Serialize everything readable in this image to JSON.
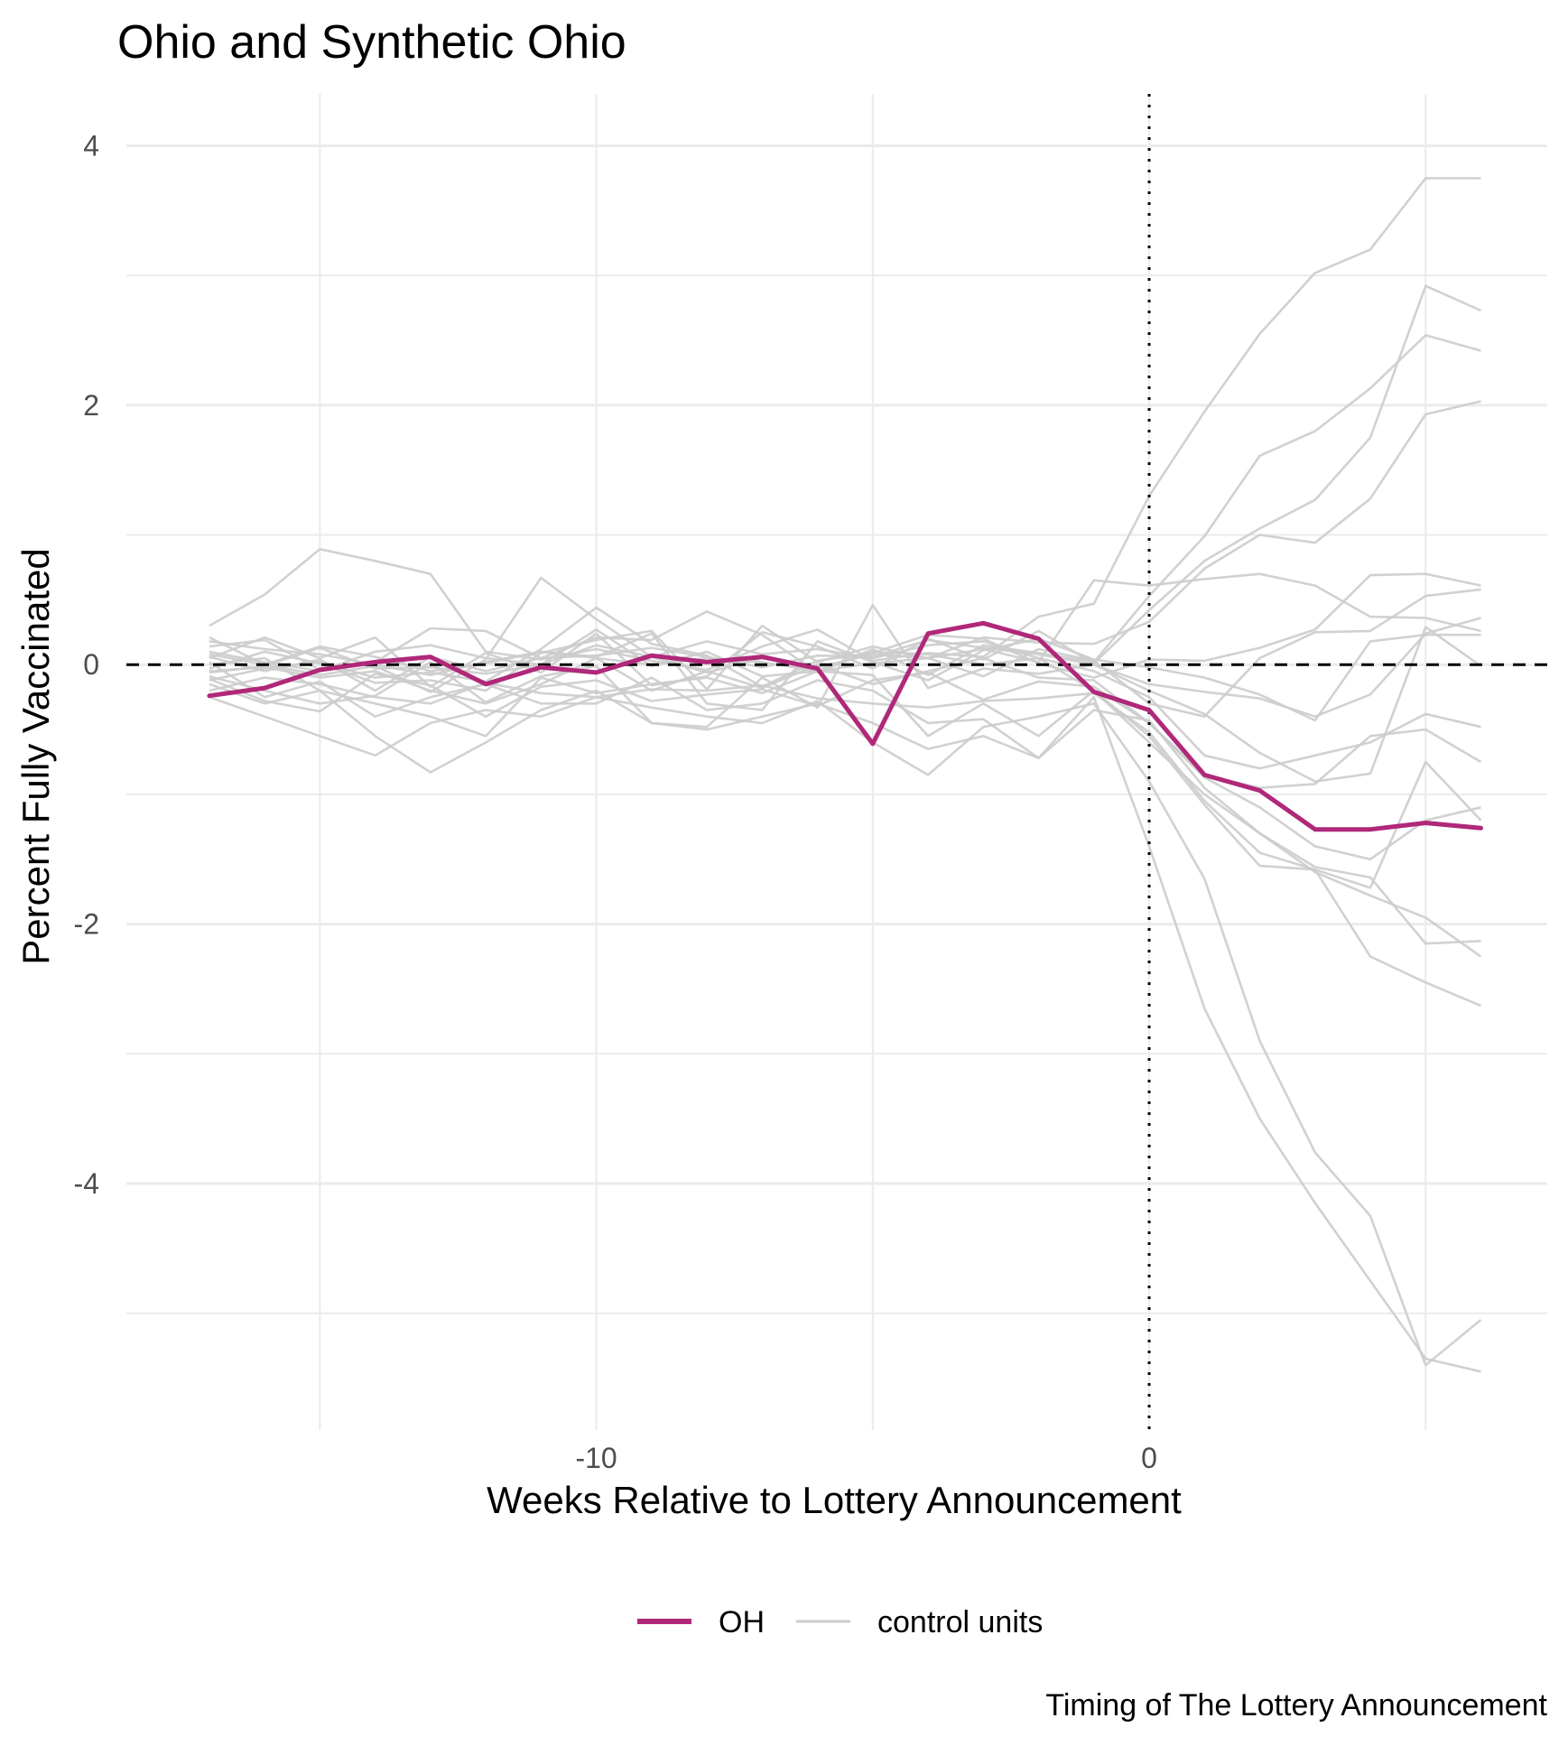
{
  "chart_data": {
    "type": "line",
    "title": "Ohio and Synthetic Ohio",
    "xlabel": "Weeks Relative to Lottery Announcement",
    "ylabel": "Percent Fully Vaccinated",
    "caption": "Timing of The Lottery Announcement",
    "xlim": [
      -18.5,
      7.2
    ],
    "ylim": [
      -5.9,
      4.4
    ],
    "x_ticks": [
      {
        "value": -10,
        "label": "-10"
      },
      {
        "value": 0,
        "label": "0"
      }
    ],
    "x_minor_gridlines": [
      -15,
      -10,
      -5,
      0,
      5
    ],
    "y_ticks": [
      {
        "value": 4,
        "label": "4"
      },
      {
        "value": 2,
        "label": "2"
      },
      {
        "value": 0,
        "label": "0"
      },
      {
        "value": -2,
        "label": "-2"
      },
      {
        "value": -4,
        "label": "-4"
      }
    ],
    "y_minor_gridlines": [
      3,
      1,
      -1,
      -3,
      -5
    ],
    "grid": true,
    "reference_lines": [
      {
        "orientation": "horizontal",
        "value": 0,
        "style": "dashed"
      },
      {
        "orientation": "vertical",
        "value": 0,
        "style": "dotted"
      }
    ],
    "x": [
      -17,
      -16,
      -15,
      -14,
      -13,
      -12,
      -11,
      -10,
      -9,
      -8,
      -7,
      -6,
      -5,
      -4,
      -3,
      -2,
      -1,
      0,
      1,
      2,
      3,
      4,
      5,
      6
    ],
    "series": [
      {
        "name": "OH",
        "role": "treated",
        "color": "#b0287a",
        "values": [
          -0.24,
          -0.18,
          -0.04,
          0.02,
          0.06,
          -0.15,
          -0.02,
          -0.06,
          0.07,
          0.02,
          0.06,
          -0.03,
          -0.61,
          0.24,
          0.32,
          0.2,
          -0.21,
          -0.35,
          -0.85,
          -0.97,
          -1.27,
          -1.27,
          -1.22,
          -1.26
        ]
      },
      {
        "name": "control units",
        "role": "control",
        "color": "#cccccc",
        "values": [
          0.3,
          0.54,
          0.89,
          0.8,
          0.7,
          0.1,
          0.04,
          0.12,
          0.03,
          -0.04,
          0.14,
          0.27,
          0.03,
          0.09,
          0.06,
          0.37,
          0.47,
          1.3,
          1.95,
          2.55,
          3.02,
          3.2,
          3.75,
          3.75
        ]
      },
      {
        "name": "control units",
        "role": "control",
        "color": "#cccccc",
        "values": [
          0.14,
          0.19,
          -0.04,
          0.02,
          0.28,
          0.26,
          0.05,
          0.21,
          0.19,
          0.41,
          0.23,
          -0.06,
          0.12,
          -0.08,
          0.15,
          0.09,
          0.02,
          0.53,
          0.99,
          1.61,
          1.8,
          2.13,
          2.54,
          2.42
        ]
      },
      {
        "name": "control units",
        "role": "control",
        "color": "#cccccc",
        "values": [
          0.05,
          0.21,
          0.05,
          0.21,
          -0.17,
          0.09,
          -0.06,
          0.24,
          -0.16,
          -0.09,
          0.25,
          0.14,
          -0.03,
          0.2,
          0.04,
          0.26,
          0.01,
          0.42,
          0.8,
          1.05,
          1.27,
          1.75,
          2.92,
          2.73
        ]
      },
      {
        "name": "control units",
        "role": "control",
        "color": "#cccccc",
        "values": [
          -0.03,
          0.1,
          0.01,
          -0.14,
          -0.12,
          -0.2,
          0.09,
          0.19,
          0.26,
          -0.19,
          0.3,
          0.02,
          0.14,
          0.05,
          0.21,
          0.17,
          0.16,
          0.33,
          0.74,
          1.0,
          0.94,
          1.28,
          1.93,
          2.03
        ]
      },
      {
        "name": "control units",
        "role": "control",
        "color": "#cccccc",
        "values": [
          0.08,
          0.0,
          -0.08,
          -0.01,
          -0.21,
          0.04,
          0.67,
          0.35,
          0.06,
          -0.06,
          0.05,
          -0.02,
          0.08,
          0.05,
          0.12,
          0.02,
          0.65,
          0.61,
          0.66,
          0.7,
          0.61,
          0.37,
          0.36,
          0.26
        ]
      },
      {
        "name": "control units",
        "role": "control",
        "color": "#cccccc",
        "values": [
          -0.12,
          -0.03,
          0.02,
          -0.1,
          -0.06,
          -0.13,
          0.12,
          0.44,
          0.16,
          0.07,
          -0.17,
          0.03,
          0.09,
          0.23,
          0.2,
          0.01,
          -0.1,
          0.04,
          0.03,
          0.13,
          0.27,
          0.69,
          0.7,
          0.61
        ]
      },
      {
        "name": "control units",
        "role": "control",
        "color": "#cccccc",
        "values": [
          -0.06,
          -0.01,
          0.13,
          -0.03,
          -0.02,
          -0.07,
          0.0,
          0.27,
          -0.01,
          0.1,
          -0.09,
          -0.05,
          0.01,
          0.05,
          -0.09,
          0.12,
          0.03,
          -0.3,
          -0.4,
          0.05,
          0.25,
          0.26,
          0.53,
          0.58
        ]
      },
      {
        "name": "control units",
        "role": "control",
        "color": "#cccccc",
        "values": [
          0.21,
          0.0,
          0.14,
          0.06,
          -0.05,
          0.01,
          0.1,
          0.06,
          0.24,
          -0.3,
          -0.35,
          0.18,
          0.02,
          -0.12,
          0.11,
          0.2,
          0.04,
          -0.02,
          -0.1,
          -0.23,
          -0.43,
          0.18,
          0.23,
          0.23
        ]
      },
      {
        "name": "control units",
        "role": "control",
        "color": "#cccccc",
        "values": [
          -0.09,
          -0.2,
          -0.3,
          -0.24,
          0.02,
          -0.29,
          -0.09,
          -0.01,
          -0.45,
          -0.48,
          -0.1,
          -0.33,
          0.46,
          -0.18,
          -0.03,
          -0.07,
          0.0,
          -0.15,
          -0.21,
          -0.26,
          -0.4,
          -0.23,
          0.24,
          0.36
        ]
      },
      {
        "name": "control units",
        "role": "control",
        "color": "#cccccc",
        "values": [
          0.06,
          -0.05,
          0.04,
          -0.2,
          0.06,
          -0.05,
          0.05,
          0.07,
          0.13,
          0.06,
          -0.02,
          0.07,
          0.06,
          0.19,
          0.13,
          0.08,
          0.0,
          -0.2,
          -0.38,
          -0.68,
          -0.9,
          -0.84,
          0.29,
          -0.01
        ]
      },
      {
        "name": "control units",
        "role": "control",
        "color": "#cccccc",
        "values": [
          -0.11,
          -0.28,
          -0.36,
          -0.07,
          -0.16,
          -0.4,
          -0.17,
          -0.12,
          -0.28,
          -0.23,
          -0.19,
          -0.32,
          -0.12,
          -0.06,
          -0.27,
          -0.13,
          -0.17,
          -0.45,
          -0.87,
          -1.1,
          -1.4,
          -1.5,
          -1.2,
          -1.1
        ]
      },
      {
        "name": "control units",
        "role": "control",
        "color": "#cccccc",
        "values": [
          -0.2,
          -0.1,
          -0.15,
          -0.25,
          -0.3,
          -0.14,
          -0.22,
          -0.25,
          -0.19,
          -0.2,
          -0.16,
          -0.26,
          -0.3,
          -0.33,
          -0.28,
          -0.26,
          -0.22,
          -0.52,
          -1.05,
          -1.45,
          -1.58,
          -1.72,
          -0.75,
          -1.2
        ]
      },
      {
        "name": "control units",
        "role": "control",
        "color": "#cccccc",
        "values": [
          0.0,
          0.05,
          -0.2,
          -0.3,
          -0.4,
          -0.55,
          -0.1,
          -0.22,
          -0.15,
          -0.1,
          -0.22,
          -0.05,
          -0.08,
          -0.55,
          -0.3,
          -0.55,
          -0.2,
          -0.6,
          -1.0,
          -1.3,
          -1.6,
          -1.78,
          -1.95,
          -2.25
        ]
      },
      {
        "name": "control units",
        "role": "control",
        "color": "#cccccc",
        "values": [
          0.02,
          -0.25,
          -0.13,
          -0.4,
          -0.25,
          -0.15,
          -0.3,
          -0.3,
          -0.1,
          -0.35,
          -0.3,
          -0.12,
          -0.2,
          -0.45,
          -0.42,
          -0.72,
          -0.35,
          -0.43,
          -0.95,
          -1.3,
          -1.56,
          -1.64,
          -2.15,
          -2.13
        ]
      },
      {
        "name": "control units",
        "role": "control",
        "color": "#cccccc",
        "values": [
          -0.25,
          -0.4,
          -0.55,
          -0.7,
          -0.45,
          -0.35,
          -0.4,
          -0.25,
          -0.33,
          -0.4,
          -0.45,
          -0.28,
          -0.6,
          -0.85,
          -0.48,
          -0.4,
          -0.3,
          -0.9,
          -1.65,
          -2.9,
          -3.76,
          -4.25,
          -5.4,
          -5.05
        ]
      },
      {
        "name": "control units",
        "role": "control",
        "color": "#cccccc",
        "values": [
          -0.15,
          -0.3,
          -0.2,
          -0.55,
          -0.83,
          -0.6,
          -0.35,
          -0.2,
          -0.45,
          -0.5,
          -0.4,
          -0.3,
          -0.45,
          -0.65,
          -0.55,
          -0.72,
          -0.25,
          -1.4,
          -2.65,
          -3.5,
          -4.15,
          -4.75,
          -5.35,
          -5.45
        ]
      },
      {
        "name": "control units",
        "role": "control",
        "color": "#cccccc",
        "values": [
          0.1,
          0.02,
          -0.05,
          0.1,
          0.15,
          0.05,
          0.0,
          0.15,
          0.06,
          0.18,
          0.08,
          0.12,
          0.05,
          0.15,
          0.18,
          0.05,
          -0.2,
          -0.55,
          -1.08,
          -1.55,
          -1.58,
          -2.25,
          -2.45,
          -2.63
        ]
      },
      {
        "name": "control units",
        "role": "control",
        "color": "#cccccc",
        "values": [
          0.18,
          0.12,
          0.08,
          0.0,
          -0.08,
          0.02,
          0.1,
          0.05,
          0.0,
          0.05,
          0.02,
          -0.05,
          0.1,
          0.08,
          0.0,
          0.05,
          -0.05,
          -0.25,
          -0.7,
          -0.8,
          -0.7,
          -0.6,
          -0.38,
          -0.48
        ]
      },
      {
        "name": "control units",
        "role": "control",
        "color": "#cccccc",
        "values": [
          -0.05,
          -0.02,
          -0.1,
          -0.05,
          -0.2,
          -0.3,
          -0.15,
          0.05,
          -0.2,
          -0.05,
          -0.18,
          0.0,
          -0.15,
          -0.05,
          0.05,
          -0.1,
          -0.12,
          -0.45,
          -0.85,
          -0.95,
          -0.92,
          -0.55,
          -0.5,
          -0.75
        ]
      }
    ],
    "legend": {
      "position": "bottom",
      "entries": [
        {
          "label": "OH",
          "color": "#b0287a"
        },
        {
          "label": "control units",
          "color": "#cccccc"
        }
      ]
    }
  }
}
